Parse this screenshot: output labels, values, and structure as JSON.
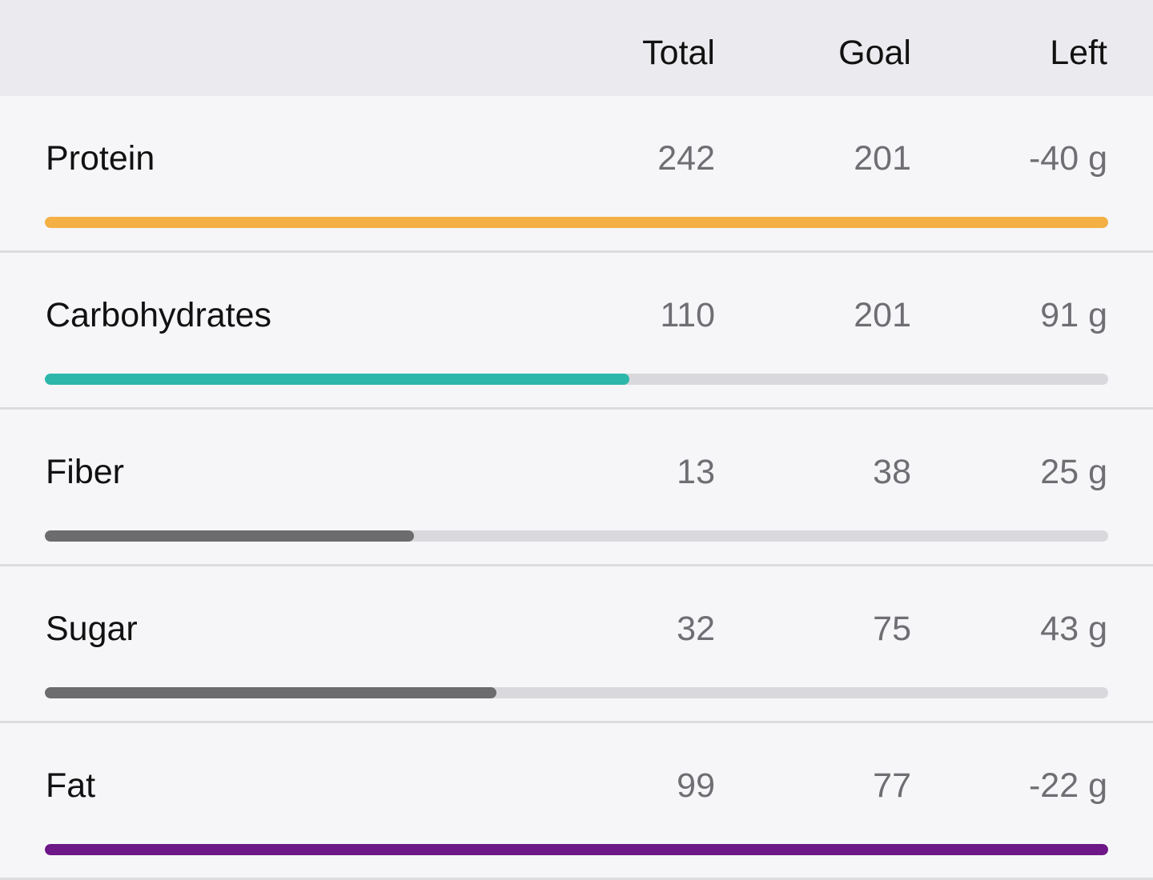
{
  "table": {
    "columns": [
      "Total",
      "Goal",
      "Left"
    ],
    "rows": [
      {
        "name": "Protein",
        "total": 242,
        "goal": 201,
        "left": "-40 g",
        "progress": 100,
        "color": "#f5b045"
      },
      {
        "name": "Carbohydrates",
        "total": 110,
        "goal": 201,
        "left": "91 g",
        "progress": 55,
        "color": "#2db7aa"
      },
      {
        "name": "Fiber",
        "total": 13,
        "goal": 38,
        "left": "25 g",
        "progress": 34.7,
        "color": "#6c6c6e"
      },
      {
        "name": "Sugar",
        "total": 32,
        "goal": 75,
        "left": "43 g",
        "progress": 42.5,
        "color": "#6c6c6e"
      },
      {
        "name": "Fat",
        "total": 99,
        "goal": 77,
        "left": "-22 g",
        "progress": 100,
        "color": "#6d1788"
      }
    ]
  }
}
